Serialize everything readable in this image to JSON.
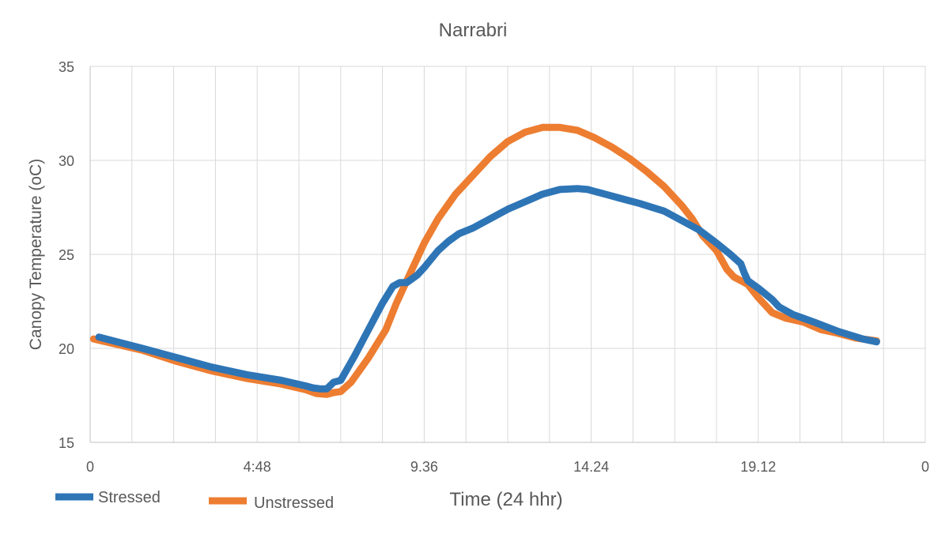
{
  "chart_data": {
    "type": "line",
    "title": "Narrabri",
    "xlabel": "Time (24 hhr)",
    "ylabel": "Canopy Temperature (oC)",
    "ylim": [
      15,
      35
    ],
    "yticks": [
      "15",
      "20",
      "25",
      "30",
      "35"
    ],
    "xlim": [
      0,
      24
    ],
    "xticks": [
      {
        "value": 0,
        "label": "0"
      },
      {
        "value": 4.8,
        "label": "4:48"
      },
      {
        "value": 9.6,
        "label": "9.36"
      },
      {
        "value": 14.4,
        "label": "14.24"
      },
      {
        "value": 19.2,
        "label": "19.12"
      },
      {
        "value": 24,
        "label": "0"
      }
    ],
    "grid_step": 1.2,
    "legend": [
      "Stressed",
      "Unstressed"
    ],
    "series": [
      {
        "name": "Stressed",
        "color": "#2E75B6",
        "x": [
          0.25,
          1.5,
          2.5,
          3.5,
          4.5,
          5.5,
          6.2,
          6.4,
          6.6,
          6.8,
          7.0,
          7.2,
          7.6,
          8.0,
          8.4,
          8.7,
          8.9,
          9.1,
          9.4,
          9.6,
          10.0,
          10.3,
          10.6,
          11.0,
          11.5,
          12.0,
          12.5,
          13.0,
          13.5,
          14.0,
          14.3,
          14.5,
          14.8,
          15.2,
          15.8,
          16.5,
          17.2,
          17.5,
          18.0,
          18.4,
          18.7,
          18.8,
          18.9,
          19.2,
          19.6,
          19.8,
          20.2,
          20.8,
          21.5,
          22.2,
          22.6
        ],
        "y": [
          20.6,
          20.0,
          19.5,
          19.0,
          18.6,
          18.3,
          18.0,
          17.9,
          17.85,
          17.85,
          18.2,
          18.3,
          19.6,
          21.0,
          22.4,
          23.3,
          23.5,
          23.5,
          23.9,
          24.3,
          25.2,
          25.7,
          26.1,
          26.4,
          26.9,
          27.4,
          27.8,
          28.2,
          28.45,
          28.5,
          28.45,
          28.35,
          28.2,
          28.0,
          27.7,
          27.3,
          26.6,
          26.3,
          25.6,
          25.0,
          24.5,
          24.0,
          23.6,
          23.2,
          22.6,
          22.2,
          21.8,
          21.4,
          20.9,
          20.5,
          20.35
        ]
      },
      {
        "name": "Unstressed",
        "color": "#ED7D31",
        "x": [
          0.1,
          1.5,
          2.5,
          3.5,
          4.5,
          5.5,
          6.2,
          6.5,
          6.8,
          7.0,
          7.2,
          7.5,
          8.0,
          8.5,
          8.8,
          9.2,
          9.6,
          10.0,
          10.5,
          11.0,
          11.5,
          12.0,
          12.5,
          13.0,
          13.5,
          14.0,
          14.5,
          15.0,
          15.5,
          16.0,
          16.5,
          17.0,
          17.3,
          17.6,
          18.0,
          18.3,
          18.5,
          18.7,
          18.9,
          19.2,
          19.6,
          20.0,
          20.5,
          21.0,
          21.5,
          22.0,
          22.6
        ],
        "y": [
          20.5,
          19.9,
          19.3,
          18.8,
          18.4,
          18.1,
          17.8,
          17.6,
          17.55,
          17.65,
          17.7,
          18.2,
          19.5,
          21.0,
          22.4,
          24.0,
          25.6,
          26.9,
          28.2,
          29.2,
          30.2,
          31.0,
          31.5,
          31.75,
          31.75,
          31.6,
          31.2,
          30.7,
          30.1,
          29.4,
          28.6,
          27.6,
          26.9,
          26.0,
          25.2,
          24.2,
          23.8,
          23.6,
          23.4,
          22.7,
          21.9,
          21.6,
          21.4,
          21.0,
          20.8,
          20.55,
          20.4
        ]
      }
    ]
  }
}
